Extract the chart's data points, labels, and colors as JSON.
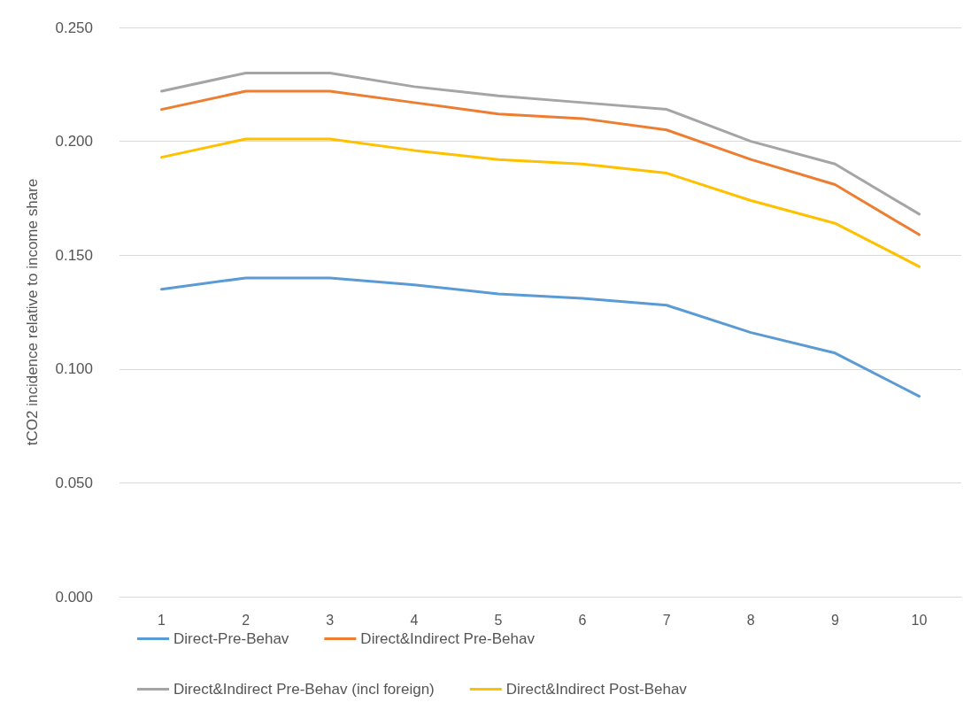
{
  "chart_data": {
    "type": "line",
    "ylabel": "tCO2 incidence relative to income share",
    "categories": [
      "1",
      "2",
      "3",
      "4",
      "5",
      "6",
      "7",
      "8",
      "9",
      "10"
    ],
    "series": [
      {
        "name": "Direct-Pre-Behav",
        "color": "#5b9bd5",
        "values": [
          0.135,
          0.14,
          0.14,
          0.137,
          0.133,
          0.131,
          0.128,
          0.116,
          0.107,
          0.088
        ]
      },
      {
        "name": "Direct&Indirect Pre-Behav",
        "color": "#ed7d31",
        "values": [
          0.214,
          0.222,
          0.222,
          0.217,
          0.212,
          0.21,
          0.205,
          0.192,
          0.181,
          0.159
        ]
      },
      {
        "name": "Direct&Indirect Pre-Behav (incl foreign)",
        "color": "#a5a5a5",
        "values": [
          0.222,
          0.23,
          0.23,
          0.224,
          0.22,
          0.217,
          0.214,
          0.2,
          0.19,
          0.168
        ]
      },
      {
        "name": "Direct&Indirect Post-Behav",
        "color": "#ffc000",
        "values": [
          0.193,
          0.201,
          0.201,
          0.196,
          0.192,
          0.19,
          0.186,
          0.174,
          0.164,
          0.145
        ]
      }
    ],
    "ylim": [
      0,
      0.25
    ],
    "yticks": [
      {
        "value": 0,
        "label": "0.000"
      },
      {
        "value": 0.05,
        "label": "0.050"
      },
      {
        "value": 0.1,
        "label": "0.100"
      },
      {
        "value": 0.15,
        "label": "0.150"
      },
      {
        "value": 0.2,
        "label": "0.200"
      },
      {
        "value": 0.25,
        "label": "0.250"
      }
    ],
    "grid": "y",
    "legend": "bottom",
    "marker": "none",
    "line_style": "solid"
  }
}
